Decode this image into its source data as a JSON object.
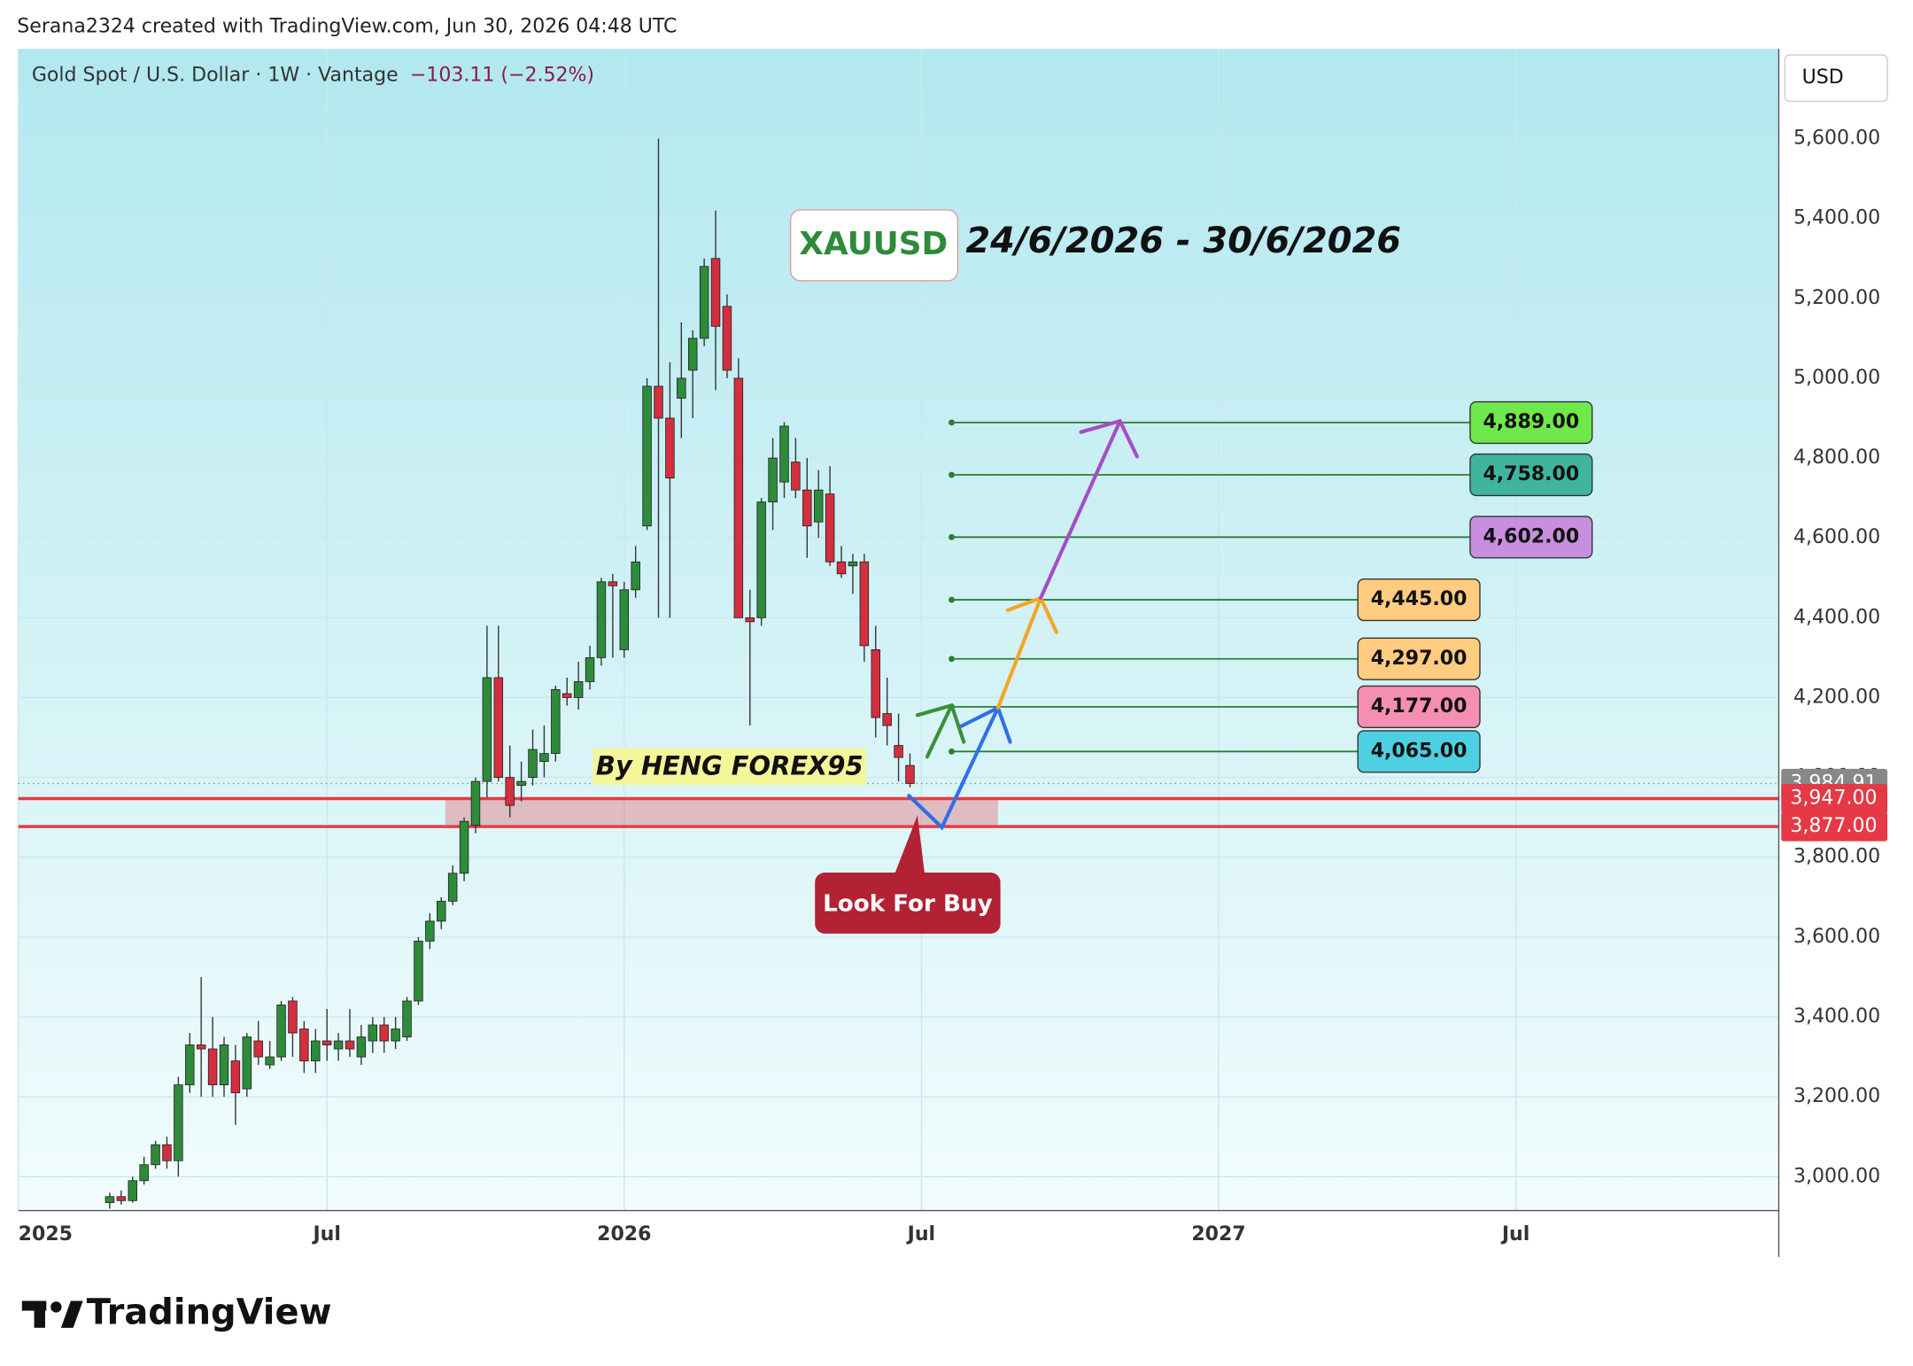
{
  "header": "Serana2324 created with TradingView.com, Jun 30, 2026 04:48 UTC",
  "chart_data": {
    "type": "candlestick",
    "title": "Gold Spot / U.S. Dollar · 1W · Vantage",
    "change": "−103.11 (−2.52%)",
    "currency": "USD",
    "x": [
      8,
      9,
      10,
      11,
      12,
      13,
      14,
      15,
      16,
      17,
      18,
      19,
      20,
      21,
      22,
      23,
      24,
      25,
      26,
      27,
      28,
      29,
      30,
      31,
      32,
      33,
      34,
      35,
      36,
      37,
      38,
      39,
      40,
      41,
      42,
      43,
      44,
      45,
      46,
      47,
      48,
      49,
      50,
      51,
      52,
      53,
      54,
      55,
      56,
      57,
      58,
      59,
      60,
      61,
      62,
      63,
      64,
      65,
      66,
      67,
      68,
      69,
      70,
      71,
      72,
      73,
      74,
      75,
      76,
      77,
      78
    ],
    "open": [
      2935,
      2950,
      2940,
      2990,
      3030,
      3080,
      3040,
      3230,
      3330,
      3320,
      3230,
      3290,
      3220,
      3340,
      3280,
      3300,
      3440,
      3370,
      3290,
      3340,
      3320,
      3340,
      3300,
      3340,
      3380,
      3340,
      3350,
      3440,
      3590,
      3640,
      3690,
      3760,
      3880,
      3990,
      4250,
      4000,
      3980,
      4000,
      4040,
      4060,
      4210,
      4200,
      4240,
      4300,
      4490,
      4320,
      4470,
      4630,
      4980,
      4900,
      4950,
      5020,
      5100,
      5300,
      5180,
      5000,
      4400,
      4400,
      4690,
      4740,
      4790,
      4720,
      4640,
      4710,
      4540,
      4530,
      4540,
      4320,
      4160,
      4080,
      4030
    ],
    "high": [
      2960,
      2965,
      3000,
      3050,
      3090,
      3100,
      3250,
      3360,
      3500,
      3400,
      3350,
      3330,
      3360,
      3390,
      3340,
      3440,
      3450,
      3390,
      3370,
      3420,
      3360,
      3420,
      3380,
      3400,
      3400,
      3400,
      3450,
      3600,
      3660,
      3700,
      3780,
      3900,
      4000,
      4380,
      4380,
      4080,
      4040,
      4120,
      4130,
      4230,
      4250,
      4290,
      4330,
      4500,
      4510,
      4490,
      4580,
      5000,
      5600,
      5040,
      5140,
      5120,
      5300,
      5420,
      5210,
      5050,
      4470,
      4700,
      4850,
      4890,
      4850,
      4800,
      4770,
      4780,
      4580,
      4560,
      4560,
      4380,
      4250,
      4160,
      4060
    ],
    "low": [
      2920,
      2930,
      2935,
      2980,
      3020,
      3020,
      3000,
      3210,
      3200,
      3200,
      3200,
      3130,
      3200,
      3280,
      3270,
      3290,
      3300,
      3260,
      3260,
      3290,
      3290,
      3300,
      3280,
      3310,
      3310,
      3320,
      3340,
      3430,
      3570,
      3620,
      3680,
      3740,
      3860,
      3950,
      3990,
      3900,
      3940,
      3980,
      4000,
      4040,
      4180,
      4170,
      4220,
      4280,
      4300,
      4300,
      4450,
      4620,
      4400,
      4400,
      4850,
      4900,
      5080,
      4970,
      5000,
      4400,
      4130,
      4380,
      4620,
      4700,
      4700,
      4550,
      4600,
      4530,
      4500,
      4460,
      4290,
      4100,
      4080,
      3990,
      3975
    ],
    "close": [
      2950,
      2940,
      2990,
      3030,
      3080,
      3040,
      3230,
      3330,
      3320,
      3230,
      3330,
      3210,
      3350,
      3300,
      3300,
      3430,
      3360,
      3290,
      3340,
      3330,
      3340,
      3320,
      3350,
      3380,
      3340,
      3370,
      3440,
      3590,
      3640,
      3690,
      3760,
      3890,
      3990,
      4250,
      4000,
      3930,
      3990,
      4070,
      4060,
      4220,
      4200,
      4240,
      4300,
      4490,
      4480,
      4470,
      4540,
      4980,
      4900,
      4750,
      5000,
      5100,
      5280,
      5130,
      5020,
      4400,
      4390,
      4690,
      4800,
      4880,
      4720,
      4630,
      4720,
      4540,
      4510,
      4540,
      4330,
      4150,
      4130,
      4050,
      3984.91
    ],
    "up_color": "#2e8b3a",
    "down_color": "#d32f3f",
    "xlim": [
      0,
      154
    ],
    "xticks": [
      {
        "value": 0,
        "label": "2025"
      },
      {
        "value": 27,
        "label": "Jul"
      },
      {
        "value": 53,
        "label": "2026"
      },
      {
        "value": 79,
        "label": "Jul"
      },
      {
        "value": 105,
        "label": "2027"
      },
      {
        "value": 131,
        "label": "Jul"
      }
    ],
    "ylim": [
      2915,
      5825
    ],
    "yticks": [
      {
        "value": 3000,
        "label": "3,000.00"
      },
      {
        "value": 3200,
        "label": "3,200.00"
      },
      {
        "value": 3400,
        "label": "3,400.00"
      },
      {
        "value": 3600,
        "label": "3,600.00"
      },
      {
        "value": 3800,
        "label": "3,800.00"
      },
      {
        "value": 4000,
        "label": "4,000.00"
      },
      {
        "value": 4200,
        "label": "4,200.00"
      },
      {
        "value": 4400,
        "label": "4,400.00"
      },
      {
        "value": 4600,
        "label": "4,600.00"
      },
      {
        "value": 4800,
        "label": "4,800.00"
      },
      {
        "value": 5000,
        "label": "5,000.00"
      },
      {
        "value": 5200,
        "label": "5,200.00"
      },
      {
        "value": 5400,
        "label": "5,400.00"
      },
      {
        "value": 5600,
        "label": "5,600.00"
      }
    ],
    "grid": true,
    "last_price": {
      "value": 3984.91,
      "label": "3,984.91"
    },
    "zone": [
      {
        "value": 3947,
        "label": "3,947.00"
      },
      {
        "value": 3877,
        "label": "3,877.00"
      }
    ],
    "zone_color": "#e53945",
    "targets": [
      {
        "value": 4889,
        "label": "4,889.00",
        "color": "#6ee84a"
      },
      {
        "value": 4758,
        "label": "4,758.00",
        "color": "#3fb5a0"
      },
      {
        "value": 4602,
        "label": "4,602.00",
        "color": "#c88fe0"
      },
      {
        "value": 4445,
        "label": "4,445.00",
        "color": "#ffcc80"
      },
      {
        "value": 4297,
        "label": "4,297.00",
        "color": "#ffcc80"
      },
      {
        "value": 4177,
        "label": "4,177.00",
        "color": "#f48fb1"
      },
      {
        "value": 4065,
        "label": "4,065.00",
        "color": "#4dd0e1"
      }
    ],
    "annotations": {
      "symbol": "XAUUSD",
      "dates": "24/6/2026 - 30/6/2026",
      "author": "By HENG FOREX95",
      "callout": "Look For Buy"
    }
  },
  "footer": "TradingView"
}
